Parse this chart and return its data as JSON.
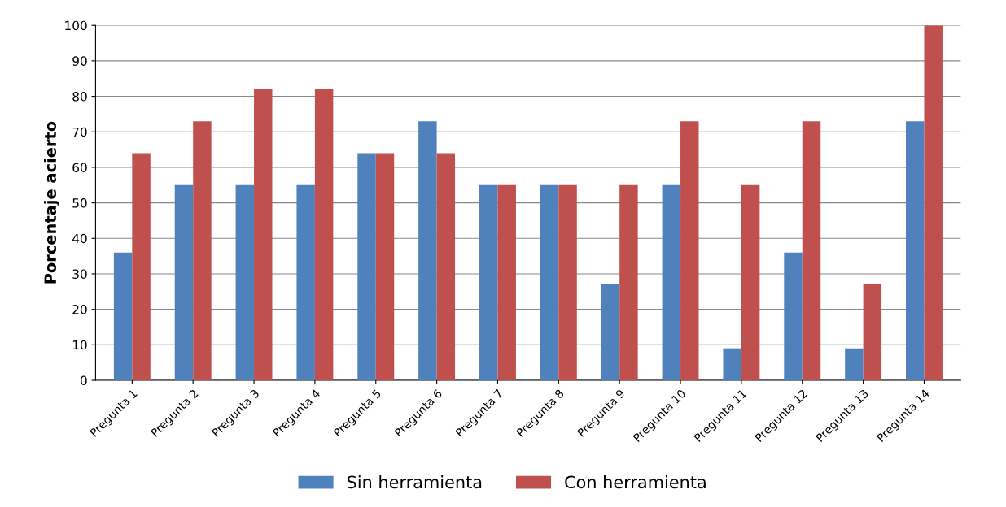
{
  "chart_data": {
    "type": "bar",
    "ylabel": "Porcentaje acierto",
    "categories": [
      "Pregunta 1",
      "Pregunta 2",
      "Pregunta 3",
      "Pregunta 4",
      "Pregunta 5",
      "Pregunta 6",
      "Pregunta 7",
      "Pregunta 8",
      "Pregunta 9",
      "Pregunta 10",
      "Pregunta 11",
      "Pregunta 12",
      "Pregunta 13",
      "Pregunta 14"
    ],
    "series": [
      {
        "name": "Sin herramienta",
        "color": "#4f81bd",
        "values": [
          36,
          55,
          55,
          55,
          64,
          73,
          55,
          55,
          27,
          55,
          9,
          36,
          9,
          73
        ]
      },
      {
        "name": "Con herramienta",
        "color": "#c0504d",
        "values": [
          64,
          73,
          82,
          82,
          64,
          64,
          55,
          55,
          55,
          73,
          55,
          73,
          27,
          100
        ]
      }
    ],
    "ylim": [
      0,
      100
    ],
    "yticks": [
      0,
      10,
      20,
      30,
      40,
      50,
      60,
      70,
      80,
      90,
      100
    ],
    "grid": "y",
    "legend": "bottom"
  }
}
